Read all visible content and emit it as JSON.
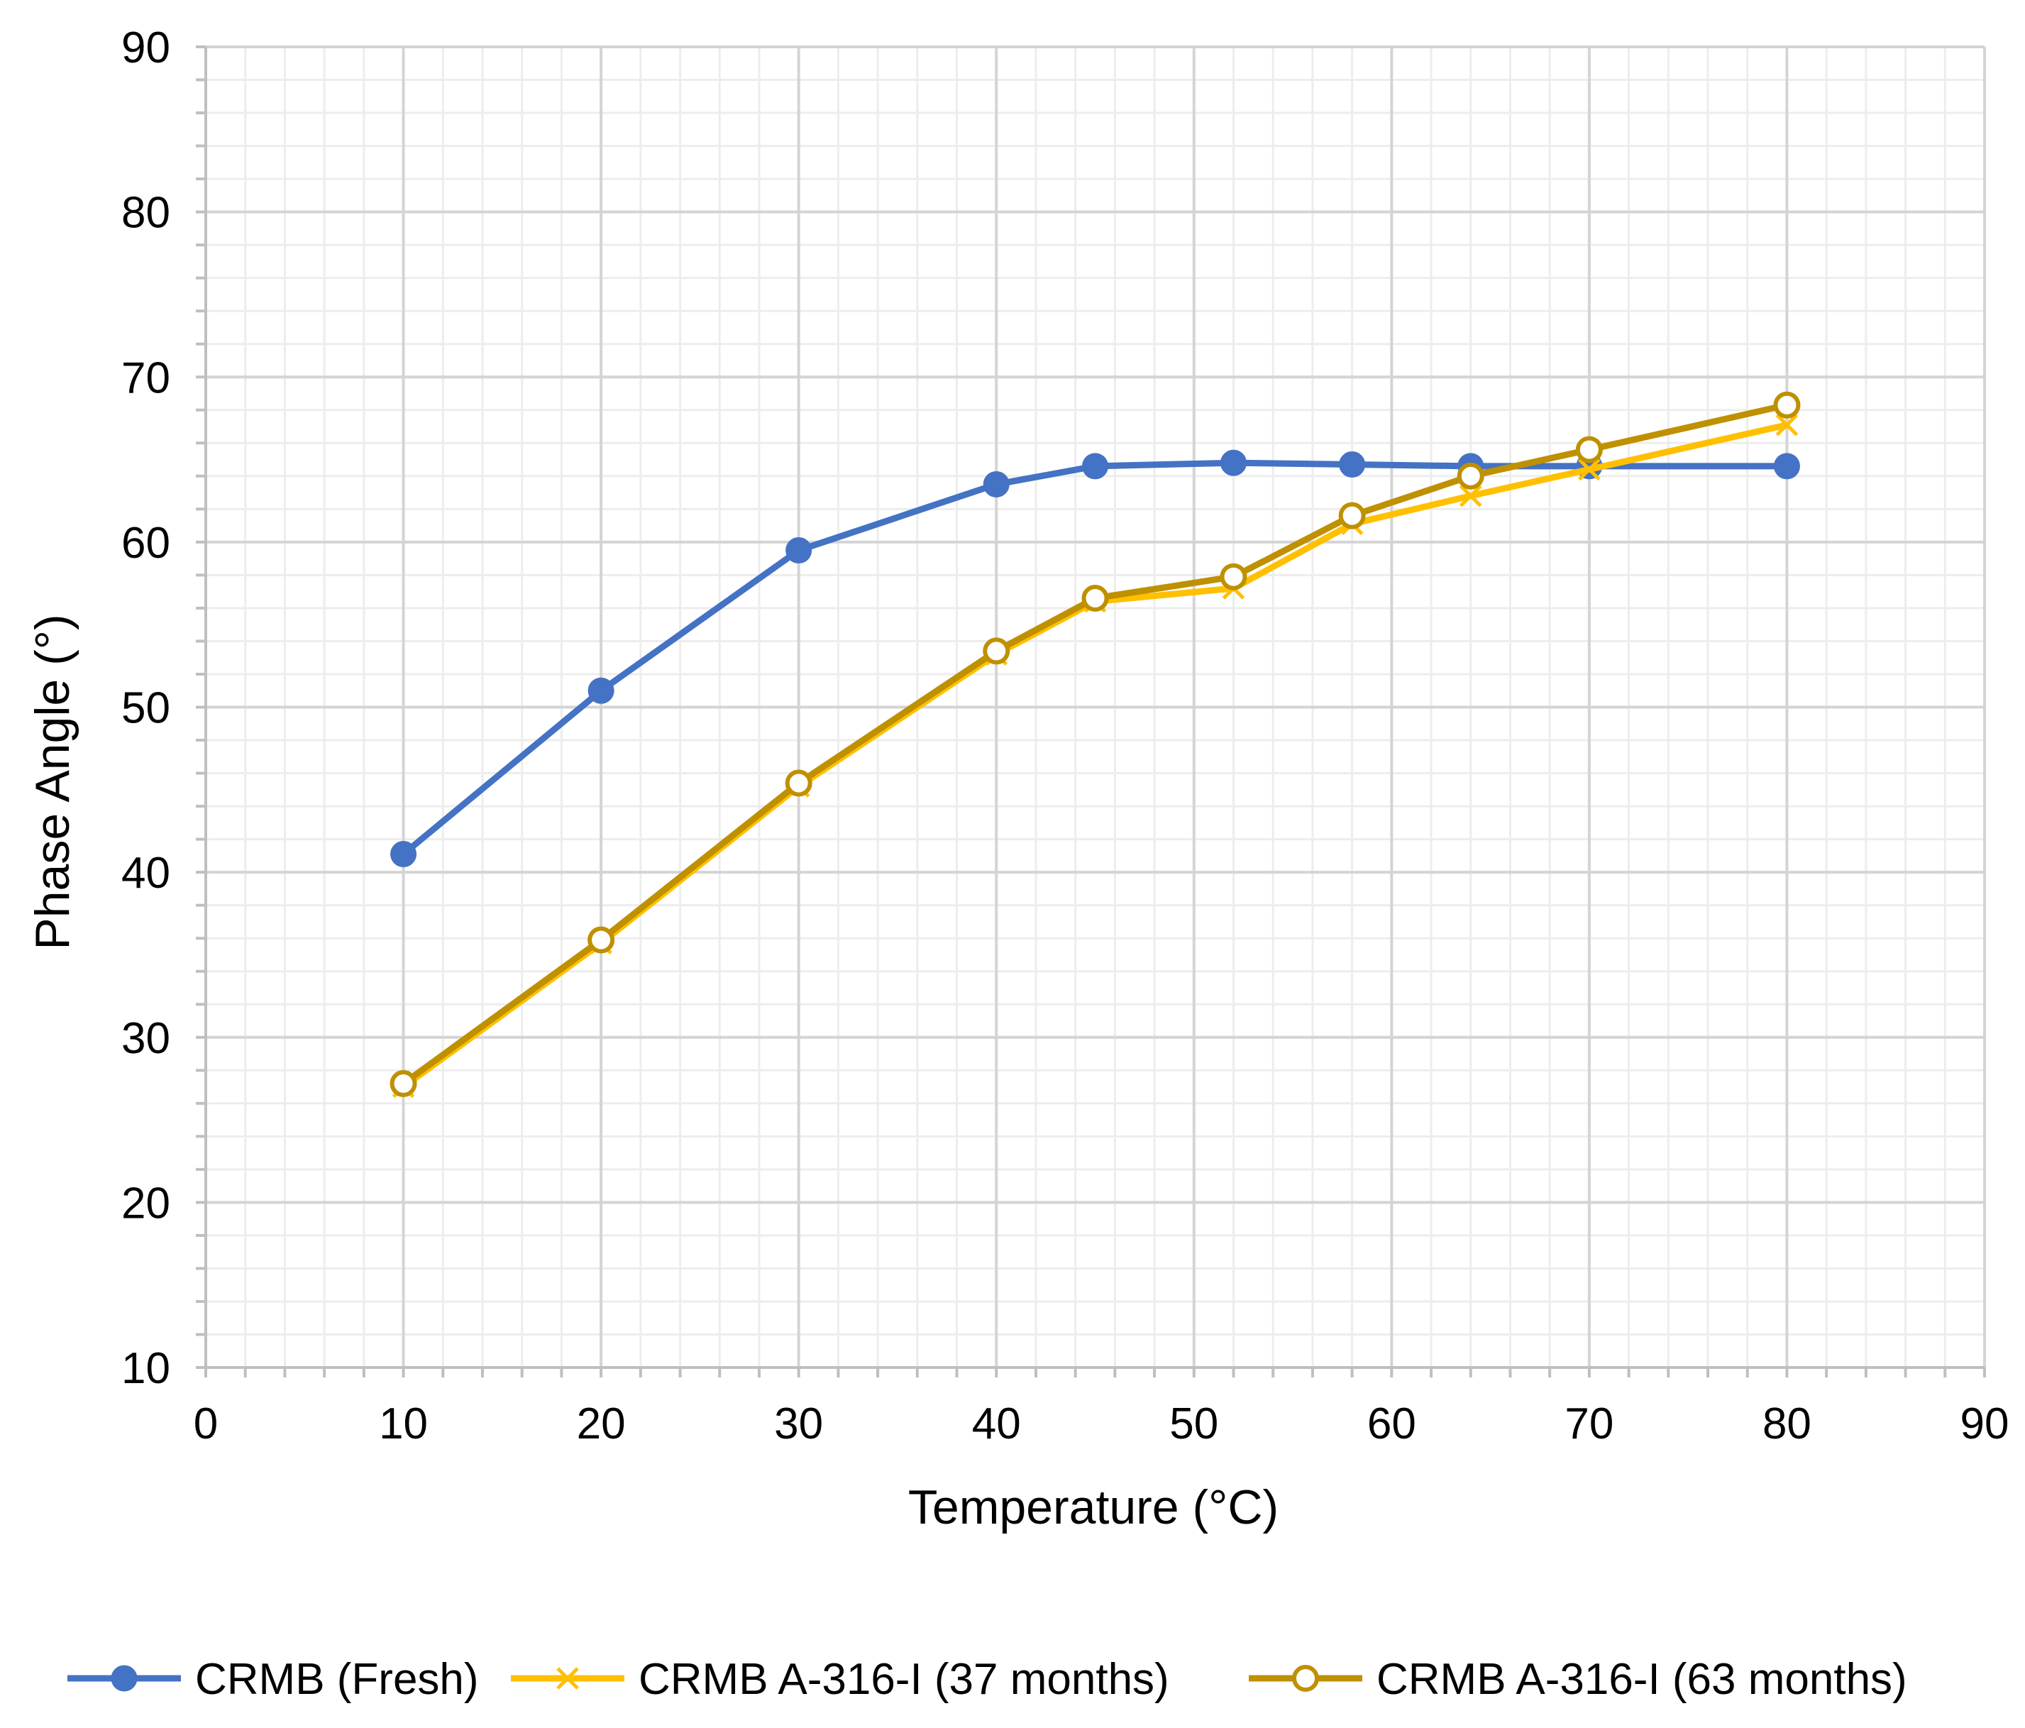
{
  "chart_data": {
    "type": "line",
    "title": "",
    "xlabel": "Temperature (°C)",
    "ylabel": "Phase Angle (°)",
    "xlim": [
      0,
      90
    ],
    "ylim": [
      10,
      90
    ],
    "xticks": [
      0,
      10,
      20,
      30,
      40,
      50,
      60,
      70,
      80,
      90
    ],
    "yticks": [
      10,
      20,
      30,
      40,
      50,
      60,
      70,
      80,
      90
    ],
    "xtick_labels": [
      "0",
      "10",
      "20",
      "30",
      "40",
      "50",
      "60",
      "70",
      "80",
      "90"
    ],
    "ytick_labels": [
      "10",
      "20",
      "30",
      "40",
      "50",
      "60",
      "70",
      "80",
      "90"
    ],
    "grid": true,
    "minor_grid": true,
    "legend_position": "bottom",
    "series": [
      {
        "name": "CRMB (Fresh)",
        "color": "#4472C4",
        "marker": "filled-circle",
        "x": [
          10,
          20,
          30,
          40,
          45,
          52,
          58,
          64,
          70,
          80
        ],
        "y": [
          41.1,
          51.0,
          59.5,
          63.5,
          64.6,
          64.8,
          64.7,
          64.6,
          64.6,
          64.6
        ]
      },
      {
        "name": "CRMB A-316-I  (37 months)",
        "color": "#FFC000",
        "marker": "x",
        "x": [
          10,
          20,
          30,
          40,
          45,
          52,
          58,
          64,
          70,
          80
        ],
        "y": [
          27.0,
          35.7,
          45.2,
          53.2,
          56.4,
          57.2,
          61.1,
          62.8,
          64.4,
          67.1
        ]
      },
      {
        "name": "CRMB A-316-I  (63 months)",
        "color": "#BF9000",
        "marker": "open-circle",
        "x": [
          10,
          20,
          30,
          40,
          45,
          52,
          58,
          64,
          70,
          80
        ],
        "y": [
          27.2,
          35.9,
          45.4,
          53.4,
          56.6,
          57.9,
          61.6,
          64.0,
          65.6,
          68.3
        ]
      }
    ]
  }
}
